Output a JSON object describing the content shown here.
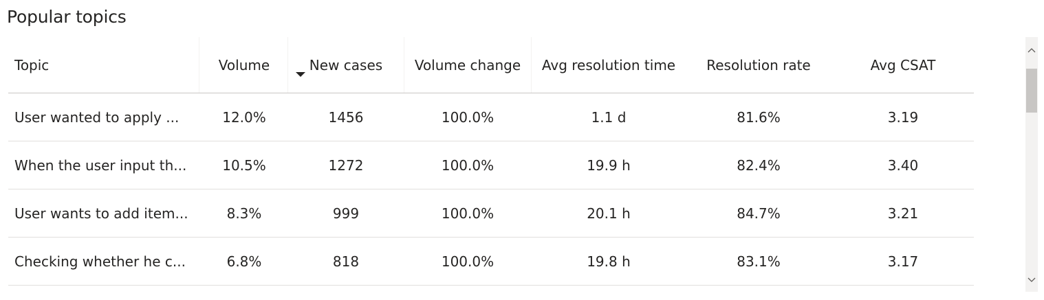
{
  "title": "Popular topics",
  "columns": [
    {
      "key": "topic",
      "label": "Topic"
    },
    {
      "key": "volume",
      "label": "Volume"
    },
    {
      "key": "new_cases",
      "label": "New cases"
    },
    {
      "key": "volume_change",
      "label": "Volume change"
    },
    {
      "key": "avg_resolution_time",
      "label": "Avg resolution time"
    },
    {
      "key": "resolution_rate",
      "label": "Resolution rate"
    },
    {
      "key": "avg_csat",
      "label": "Avg CSAT"
    }
  ],
  "sort": {
    "column": "new_cases",
    "direction": "descending"
  },
  "rows": [
    {
      "topic": "User wanted to apply ...",
      "volume": "12.0%",
      "new_cases": "1456",
      "volume_change": "100.0%",
      "avg_resolution_time": "1.1 d",
      "resolution_rate": "81.6%",
      "avg_csat": "3.19"
    },
    {
      "topic": "When the user input th...",
      "volume": "10.5%",
      "new_cases": "1272",
      "volume_change": "100.0%",
      "avg_resolution_time": "19.9 h",
      "resolution_rate": "82.4%",
      "avg_csat": "3.40"
    },
    {
      "topic": "User wants to add item...",
      "volume": "8.3%",
      "new_cases": "999",
      "volume_change": "100.0%",
      "avg_resolution_time": "20.1 h",
      "resolution_rate": "84.7%",
      "avg_csat": "3.21"
    },
    {
      "topic": "Checking whether he c...",
      "volume": "6.8%",
      "new_cases": "818",
      "volume_change": "100.0%",
      "avg_resolution_time": "19.8 h",
      "resolution_rate": "83.1%",
      "avg_csat": "3.17"
    }
  ],
  "scrollbar": {
    "up_icon": "chevron-up-icon",
    "down_icon": "chevron-down-icon"
  }
}
